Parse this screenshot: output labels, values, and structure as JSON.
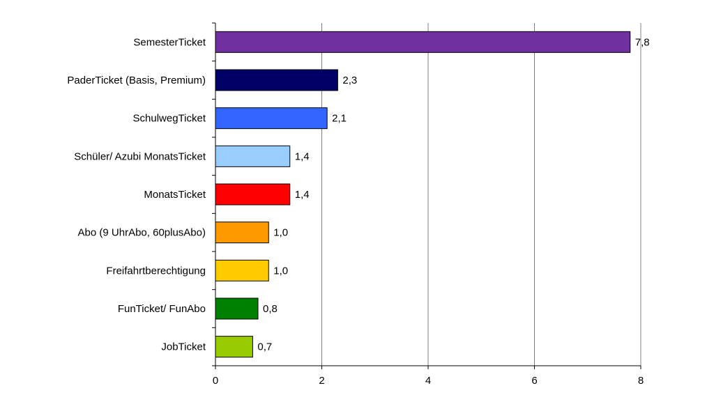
{
  "chart_data": {
    "type": "bar",
    "orientation": "horizontal",
    "title": "",
    "xlabel": "",
    "ylabel": "",
    "categories": [
      "SemesterTicket",
      "PaderTicket (Basis, Premium)",
      "SchulwegTicket",
      "Schüler/ Azubi MonatsTicket",
      "MonatsTicket",
      "Abo (9 UhrAbo, 60plusAbo)",
      "Freifahrtberechtigung",
      "FunTicket/ FunAbo",
      "JobTicket"
    ],
    "values": [
      7.8,
      2.3,
      2.1,
      1.4,
      1.4,
      1.0,
      1.0,
      0.8,
      0.7
    ],
    "value_labels": [
      "7,8",
      "2,3",
      "2,1",
      "1,4",
      "1,4",
      "1,0",
      "1,0",
      "0,8",
      "0,7"
    ],
    "colors": [
      "#7030A0",
      "#000066",
      "#3366FF",
      "#99CCFF",
      "#FF0000",
      "#FF9900",
      "#FFCC00",
      "#008000",
      "#99CC00"
    ],
    "xlim": [
      0,
      8
    ],
    "xticks": [
      0,
      2,
      4,
      6,
      8
    ],
    "xtick_labels": [
      "0",
      "2",
      "4",
      "6",
      "8"
    ],
    "grid": "vertical",
    "legend": "none"
  }
}
